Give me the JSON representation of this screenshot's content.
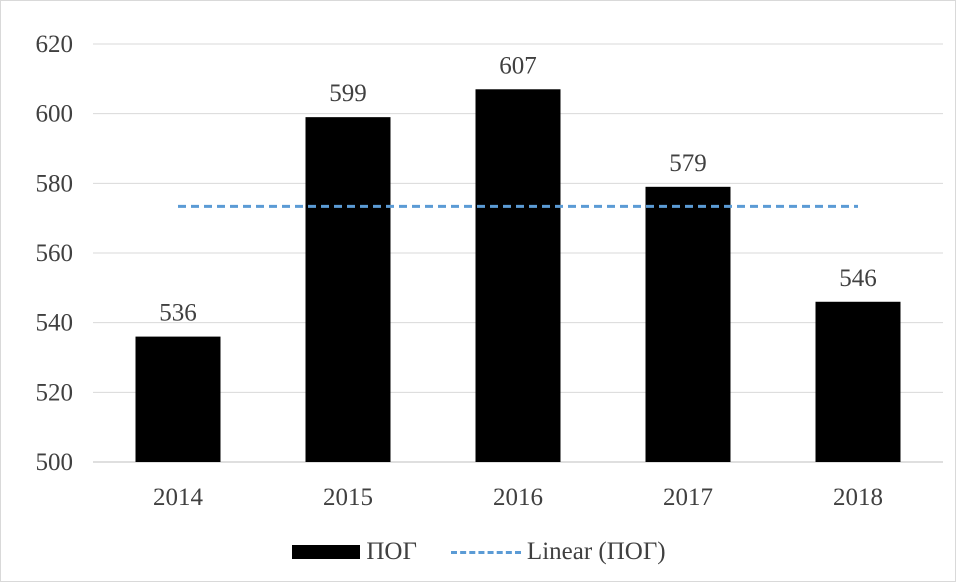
{
  "chart_data": {
    "type": "bar",
    "categories": [
      "2014",
      "2015",
      "2016",
      "2017",
      "2018"
    ],
    "series": [
      {
        "name": "ПОГ",
        "values": [
          536,
          599,
          607,
          579,
          546
        ],
        "color": "#000000"
      }
    ],
    "trendline": {
      "name": "Linear (ПОГ)",
      "type": "linear",
      "start": 573.4,
      "end": 573.4,
      "color": "#5b9bd5",
      "style": "dashed"
    },
    "y_ticks": [
      500,
      520,
      540,
      560,
      580,
      600,
      620
    ],
    "ylim": [
      500,
      620
    ],
    "grid": true,
    "data_labels": true,
    "legend_position": "bottom",
    "title": "",
    "xlabel": "",
    "ylabel": ""
  }
}
